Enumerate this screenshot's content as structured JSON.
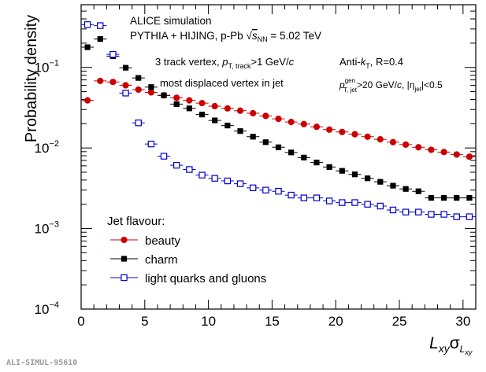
{
  "chart_data": {
    "type": "scatter",
    "ylabel": "Probability density",
    "xlabel_main": "L",
    "xlabel_sub": "xy",
    "xlabel_sigma": "σ",
    "xlabel_sigma_sub": "L",
    "xlabel_sigma_subsub": "xy",
    "xlim": [
      0,
      31
    ],
    "ylim": [
      0.0001,
      0.6
    ],
    "yscale": "log",
    "xticks": [
      0,
      5,
      10,
      15,
      20,
      25,
      30
    ],
    "ytick_labels": [
      {
        "value": 0.1,
        "base": "10",
        "exp": "−1"
      },
      {
        "value": 0.01,
        "base": "10",
        "exp": "−2"
      },
      {
        "value": 0.001,
        "base": "10",
        "exp": "−3"
      },
      {
        "value": 0.0001,
        "base": "10",
        "exp": "−4"
      }
    ],
    "legend_position": "bottom-left",
    "legend_title": "Jet flavour:",
    "annotations": {
      "alice": "ALICE simulation",
      "generator": "PYTHIA + HIJING, p-Pb",
      "sqrt_s": "= 5.02 TeV",
      "sqrt_s_sym": "s",
      "sqrt_s_sub": "NN",
      "vertex_prefix": "3 track vertex, ",
      "vertex_p": "p",
      "vertex_p_sub": "T, track",
      "vertex_cut": ">1 GeV/",
      "vertex_c": "c",
      "displaced": "most displaced vertex in jet",
      "antikt_prefix": "Anti-",
      "antikt_k": "k",
      "antikt_k_sub": "T",
      "antikt_r": ", R=0.4",
      "jet_p": "p",
      "jet_p_sup": "gen",
      "jet_p_sub": "T, jet",
      "jet_cut": ">20 GeV/",
      "jet_c": "c",
      "jet_eta_prefix": ", |η",
      "jet_eta_sub": "jet",
      "jet_eta_cut": "|<0.5"
    },
    "x": [
      0.5,
      1.5,
      2.5,
      3.5,
      4.5,
      5.5,
      6.5,
      7.5,
      8.5,
      9.5,
      10.5,
      11.5,
      12.5,
      13.5,
      14.5,
      15.5,
      16.5,
      17.5,
      18.5,
      19.5,
      20.5,
      21.5,
      22.5,
      23.5,
      24.5,
      25.5,
      26.5,
      27.5,
      28.5,
      29.5,
      30.5
    ],
    "series": [
      {
        "name": "beauty",
        "color": "#cc0000",
        "marker": "circle",
        "values": [
          0.039,
          0.068,
          0.066,
          0.06,
          0.053,
          0.049,
          0.045,
          0.042,
          0.039,
          0.036,
          0.033,
          0.031,
          0.029,
          0.027,
          0.025,
          0.023,
          0.021,
          0.0198,
          0.0183,
          0.0169,
          0.0158,
          0.0148,
          0.0138,
          0.0128,
          0.0118,
          0.011,
          0.0102,
          0.0095,
          0.0089,
          0.0083,
          0.0078
        ]
      },
      {
        "name": "charm",
        "color": "#000000",
        "marker": "square",
        "values": [
          0.178,
          0.225,
          0.138,
          0.099,
          0.074,
          0.057,
          0.045,
          0.035,
          0.031,
          0.026,
          0.022,
          0.019,
          0.0162,
          0.0138,
          0.0118,
          0.0102,
          0.0088,
          0.0076,
          0.0066,
          0.0058,
          0.0052,
          0.0047,
          0.0042,
          0.0038,
          0.0034,
          0.0031,
          0.0029,
          0.0024,
          0.0024,
          0.0024,
          0.0024
        ]
      },
      {
        "name": "light quarks and gluons",
        "color": "#0000cc",
        "marker": "open-square",
        "values": [
          0.34,
          0.33,
          0.145,
          0.048,
          0.0205,
          0.0112,
          0.0079,
          0.0061,
          0.0054,
          0.0046,
          0.0042,
          0.0039,
          0.0036,
          0.0032,
          0.003,
          0.0029,
          0.0026,
          0.0024,
          0.0024,
          0.0022,
          0.0021,
          0.0021,
          0.002,
          0.0019,
          0.0017,
          0.0016,
          0.0016,
          0.0015,
          0.0015,
          0.0014,
          0.0014
        ]
      }
    ]
  },
  "footer_tag": "ALI-SIMUL-95610"
}
